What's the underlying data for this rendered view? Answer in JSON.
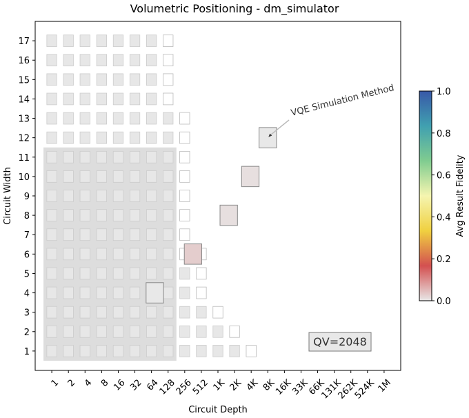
{
  "chart_data": {
    "type": "heatmap",
    "title": "Volumetric Positioning - dm_simulator",
    "xlabel": "Circuit Depth",
    "ylabel": "Circuit Width",
    "x_tick_labels": [
      "1",
      "2",
      "4",
      "8",
      "16",
      "32",
      "64",
      "128",
      "256",
      "512",
      "1K",
      "2K",
      "4K",
      "8K",
      "16K",
      "33K",
      "66K",
      "131K",
      "262K",
      "524K",
      "1M"
    ],
    "y_tick_labels": [
      "1",
      "2",
      "3",
      "4",
      "5",
      "6",
      "7",
      "8",
      "9",
      "10",
      "11",
      "12",
      "13",
      "14",
      "15",
      "16",
      "17"
    ],
    "x_log2_range": [
      -1,
      21
    ],
    "y_range": [
      0,
      18
    ],
    "quantum_volume_region": {
      "max_depth_index": 7,
      "max_width": 11,
      "color": "#dddddd"
    },
    "qv_label": "QV=2048",
    "colorbar": {
      "label": "Avg Result Fidelity",
      "range": [
        0,
        1
      ],
      "ticks": [
        "0.0",
        "0.2",
        "0.4",
        "0.6",
        "0.8",
        "1.0"
      ],
      "colors": [
        "#e8e8e8",
        "#d35050",
        "#f0d040",
        "#f5f5b0",
        "#80cc90",
        "#40a0b0",
        "#3858a8"
      ]
    },
    "background_cells": {
      "filled_color": "#e7e7e7",
      "empty_color": "#ffffff",
      "rows": [
        {
          "width": 1,
          "filled_depth_indices": [
            0,
            1,
            2,
            3,
            4,
            5,
            6,
            7,
            8,
            9,
            10,
            11
          ],
          "empty_depth_indices": [
            12
          ]
        },
        {
          "width": 2,
          "filled_depth_indices": [
            0,
            1,
            2,
            3,
            4,
            5,
            6,
            7,
            8,
            9,
            10
          ],
          "empty_depth_indices": [
            11
          ]
        },
        {
          "width": 3,
          "filled_depth_indices": [
            0,
            1,
            2,
            3,
            4,
            5,
            6,
            7,
            8,
            9
          ],
          "empty_depth_indices": [
            10
          ]
        },
        {
          "width": 4,
          "filled_depth_indices": [
            0,
            1,
            2,
            3,
            4,
            5,
            6,
            7,
            8
          ],
          "empty_depth_indices": [
            9
          ]
        },
        {
          "width": 5,
          "filled_depth_indices": [
            0,
            1,
            2,
            3,
            4,
            5,
            6,
            7,
            8
          ],
          "empty_depth_indices": [
            9
          ]
        },
        {
          "width": 6,
          "filled_depth_indices": [
            0,
            1,
            2,
            3,
            4,
            5,
            6,
            7
          ],
          "empty_depth_indices": [
            8,
            9
          ]
        },
        {
          "width": 7,
          "filled_depth_indices": [
            0,
            1,
            2,
            3,
            4,
            5,
            6,
            7
          ],
          "empty_depth_indices": [
            8
          ]
        },
        {
          "width": 8,
          "filled_depth_indices": [
            0,
            1,
            2,
            3,
            4,
            5,
            6,
            7
          ],
          "empty_depth_indices": [
            8
          ]
        },
        {
          "width": 9,
          "filled_depth_indices": [
            0,
            1,
            2,
            3,
            4,
            5,
            6,
            7
          ],
          "empty_depth_indices": [
            8
          ]
        },
        {
          "width": 10,
          "filled_depth_indices": [
            0,
            1,
            2,
            3,
            4,
            5,
            6,
            7
          ],
          "empty_depth_indices": [
            8
          ]
        },
        {
          "width": 11,
          "filled_depth_indices": [
            0,
            1,
            2,
            3,
            4,
            5,
            6,
            7
          ],
          "empty_depth_indices": [
            8
          ]
        },
        {
          "width": 12,
          "filled_depth_indices": [
            0,
            1,
            2,
            3,
            4,
            5,
            6,
            7
          ],
          "empty_depth_indices": [
            8
          ]
        },
        {
          "width": 13,
          "filled_depth_indices": [
            0,
            1,
            2,
            3,
            4,
            5,
            6,
            7
          ],
          "empty_depth_indices": [
            8
          ]
        },
        {
          "width": 14,
          "filled_depth_indices": [
            0,
            1,
            2,
            3,
            4,
            5,
            6
          ],
          "empty_depth_indices": [
            7
          ]
        },
        {
          "width": 15,
          "filled_depth_indices": [
            0,
            1,
            2,
            3,
            4,
            5,
            6
          ],
          "empty_depth_indices": [
            7
          ]
        },
        {
          "width": 16,
          "filled_depth_indices": [
            0,
            1,
            2,
            3,
            4,
            5,
            6
          ],
          "empty_depth_indices": [
            7
          ]
        },
        {
          "width": 17,
          "filled_depth_indices": [
            0,
            1,
            2,
            3,
            4,
            5,
            6
          ],
          "empty_depth_indices": [
            7
          ]
        }
      ]
    },
    "series": [
      {
        "name": "VQE Simulation Method",
        "points": [
          {
            "depth_log2": 6.2,
            "width": 4,
            "fidelity": 0.0
          },
          {
            "depth_log2": 8.5,
            "width": 6,
            "fidelity": 0.03
          },
          {
            "depth_log2": 10.65,
            "width": 8,
            "fidelity": 0.01
          },
          {
            "depth_log2": 11.95,
            "width": 10,
            "fidelity": 0.01
          },
          {
            "depth_log2": 13.0,
            "width": 12,
            "fidelity": 0.0
          }
        ]
      }
    ],
    "annotation": {
      "text": "VQE Simulation Method",
      "rotation_deg": -14,
      "points_to_index": 4
    }
  }
}
